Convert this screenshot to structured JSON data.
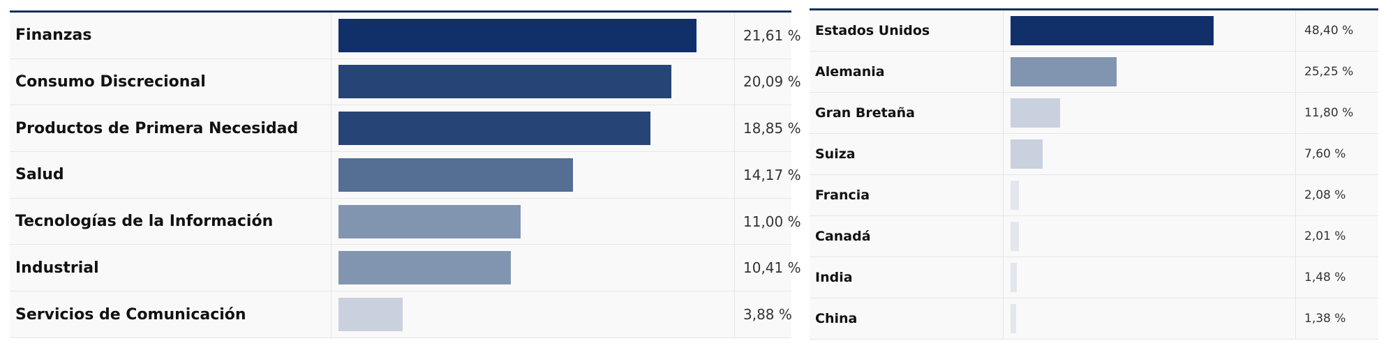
{
  "chart_data": [
    {
      "type": "bar",
      "orientation": "horizontal",
      "categories": [
        "Finanzas",
        "Consumo Discrecional",
        "Productos de Primera Necesidad",
        "Salud",
        "Tecnologías de la Información",
        "Industrial",
        "Servicios de Comunicación"
      ],
      "values": [
        21.61,
        20.09,
        18.85,
        14.17,
        11.0,
        10.41,
        3.88
      ],
      "value_labels": [
        "21,61 %",
        "20,09 %",
        "18,85 %",
        "14,17 %",
        "11,00 %",
        "10,41 %",
        "3,88 %"
      ],
      "colors": [
        "#11306a",
        "#264476",
        "#264476",
        "#546e94",
        "#8295b0",
        "#8295b0",
        "#c9d0de"
      ],
      "xlim": [
        0,
        23.3
      ]
    },
    {
      "type": "bar",
      "orientation": "horizontal",
      "categories": [
        "Estados Unidos",
        "Alemania",
        "Gran Bretaña",
        "Suiza",
        "Francia",
        "Canadá",
        "India",
        "China"
      ],
      "values": [
        48.4,
        25.25,
        11.8,
        7.6,
        2.08,
        2.01,
        1.48,
        1.38
      ],
      "value_labels": [
        "48,40 %",
        "25,25 %",
        "11,80 %",
        "7,60 %",
        "2,08 %",
        "2,01 %",
        "1,48 %",
        "1,38 %"
      ],
      "colors": [
        "#11306a",
        "#8295b0",
        "#c9d0de",
        "#c9d0de",
        "#e3e6ec",
        "#e3e6ec",
        "#e3e6ec",
        "#e3e6ec"
      ],
      "xlim": [
        0,
        65.6
      ]
    }
  ]
}
